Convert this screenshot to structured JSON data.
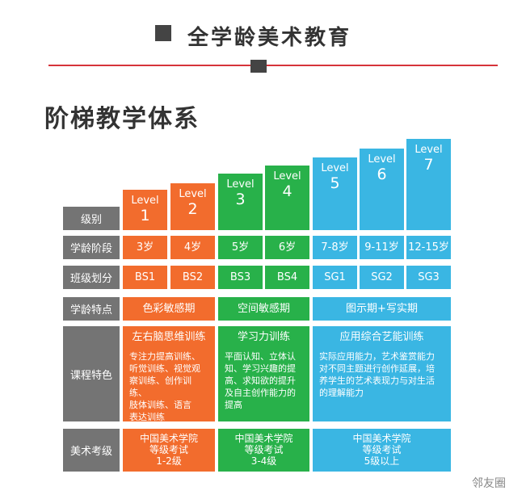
{
  "header": {
    "title": "全学龄美术教育"
  },
  "section": {
    "title": "阶梯教学体系"
  },
  "levels": [
    {
      "word": "Level",
      "num": "1"
    },
    {
      "word": "Level",
      "num": "2"
    },
    {
      "word": "Level",
      "num": "3"
    },
    {
      "word": "Level",
      "num": "4"
    },
    {
      "word": "Level",
      "num": "5"
    },
    {
      "word": "Level",
      "num": "6"
    },
    {
      "word": "Level",
      "num": "7"
    }
  ],
  "row_labels": {
    "level": "级别",
    "age": "学龄阶段",
    "class": "班级划分",
    "trait": "学龄特点",
    "course": "课程特色",
    "exam": "美术考级"
  },
  "ages": [
    "3岁",
    "4岁",
    "5岁",
    "6岁",
    "7-8岁",
    "9-11岁",
    "12-15岁"
  ],
  "classes": [
    "BS1",
    "BS2",
    "BS3",
    "BS4",
    "SG1",
    "SG2",
    "SG3"
  ],
  "traits": [
    "色彩敏感期",
    "空间敏感期",
    "图示期+写实期"
  ],
  "courses": [
    {
      "title": "左右脑思维训练",
      "body": "专注力提高训练、\n听觉训练、视觉观\n察训练、创作训练、\n肢体训练、语言\n表达训练"
    },
    {
      "title": "学习力训练",
      "body": "平面认知、立体认\n知、学习兴趣的提\n高、求知欲的提升\n及自主创作能力的\n提高"
    },
    {
      "title": "应用综合艺能训练",
      "body": "实际应用能力，艺术鉴赏能力\n对不同主题进行创作延展，培\n养学生的艺术表现力与对生活\n的理解能力"
    }
  ],
  "exams": [
    {
      "l1": "中国美术学院",
      "l2": "等级考试",
      "l3": "1-2级"
    },
    {
      "l1": "中国美术学院",
      "l2": "等级考试",
      "l3": "3-4级"
    },
    {
      "l1": "中国美术学院",
      "l2": "等级考试",
      "l3": "5级以上"
    }
  ],
  "watermark": "邻友圈",
  "colors": {
    "orange": "#f26c2d",
    "green": "#28b14a",
    "blue": "#3ab6e3",
    "gray": "#747474",
    "red_line": "#d6343a"
  }
}
